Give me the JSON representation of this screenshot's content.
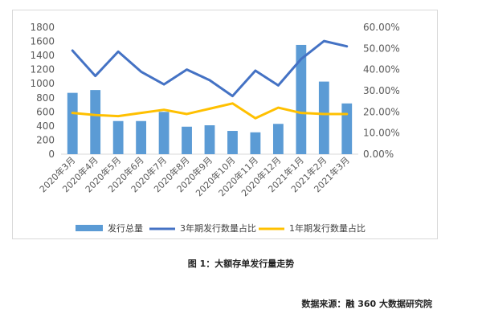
{
  "chart_data": {
    "type": "bar",
    "categories": [
      "2020年3月",
      "2020年4月",
      "2020年5月",
      "2020年6月",
      "2020年7月",
      "2020年8月",
      "2020年9月",
      "2020年10月",
      "2020年11月",
      "2020年12月",
      "2021年1月",
      "2021年2月",
      "2021年3月"
    ],
    "series": [
      {
        "name": "发行总量",
        "type": "bar",
        "axis": "left",
        "color": "#5b9bd5",
        "values": [
          870,
          910,
          470,
          470,
          600,
          390,
          410,
          330,
          310,
          430,
          1550,
          1030,
          720
        ]
      },
      {
        "name": "3年期发行数量占比",
        "type": "line",
        "axis": "right",
        "color": "#4472c4",
        "values": [
          0.49,
          0.37,
          0.485,
          0.39,
          0.33,
          0.4,
          0.35,
          0.275,
          0.395,
          0.325,
          0.45,
          0.535,
          0.51
        ]
      },
      {
        "name": "1年期发行数量占比",
        "type": "line",
        "axis": "right",
        "color": "#ffc000",
        "values": [
          0.195,
          0.185,
          0.18,
          0.195,
          0.21,
          0.19,
          0.215,
          0.24,
          0.17,
          0.22,
          0.195,
          0.19,
          0.19
        ]
      }
    ],
    "left_axis": {
      "ticks": [
        "0",
        "200",
        "400",
        "600",
        "800",
        "1000",
        "1200",
        "1400",
        "1600",
        "1800"
      ],
      "ylim": [
        0,
        1800
      ]
    },
    "right_axis": {
      "ticks": [
        "0.00%",
        "10.00%",
        "20.00%",
        "30.00%",
        "40.00%",
        "50.00%",
        "60.00%"
      ],
      "ylim": [
        0,
        0.6
      ]
    },
    "grid": false,
    "legend": "bottom"
  },
  "caption": "图 1：大额存单发行量走势",
  "source": "数据来源：融 360 大数据研究院"
}
